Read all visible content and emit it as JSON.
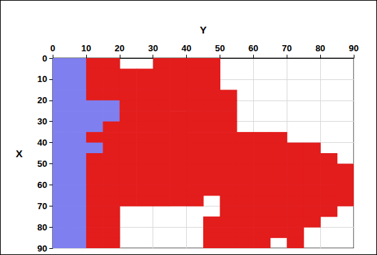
{
  "chart_data": {
    "type": "heatmap",
    "xlabel": "Y",
    "ylabel": "X",
    "xlim": [
      0,
      90
    ],
    "xticks": [
      0,
      10,
      20,
      30,
      40,
      50,
      60,
      70,
      80,
      90
    ],
    "ylim": [
      0,
      90
    ],
    "yticks": [
      0,
      10,
      20,
      30,
      40,
      50,
      60,
      70,
      80,
      90
    ],
    "grid": true,
    "colors": [
      "#7f7ff0",
      "#e31c1c"
    ],
    "values": [
      [
        1,
        1,
        2,
        2,
        0,
        0,
        2,
        2,
        2,
        2,
        0,
        0,
        0,
        0,
        0,
        0,
        0,
        0
      ],
      [
        1,
        1,
        2,
        2,
        2,
        2,
        2,
        2,
        2,
        2,
        0,
        0,
        0,
        0,
        0,
        0,
        0,
        0
      ],
      [
        1,
        1,
        2,
        2,
        2,
        2,
        2,
        2,
        2,
        2,
        0,
        0,
        0,
        0,
        0,
        0,
        0,
        0
      ],
      [
        1,
        1,
        2,
        2,
        2,
        2,
        2,
        2,
        2,
        2,
        2,
        0,
        0,
        0,
        0,
        0,
        0,
        0
      ],
      [
        1,
        1,
        1,
        1,
        2,
        2,
        2,
        2,
        2,
        2,
        2,
        0,
        0,
        0,
        0,
        0,
        0,
        0
      ],
      [
        1,
        1,
        1,
        1,
        2,
        2,
        2,
        2,
        2,
        2,
        2,
        0,
        0,
        0,
        0,
        0,
        0,
        0
      ],
      [
        1,
        1,
        1,
        2,
        2,
        2,
        2,
        2,
        2,
        2,
        2,
        0,
        0,
        0,
        0,
        0,
        0,
        0
      ],
      [
        1,
        1,
        2,
        2,
        2,
        2,
        2,
        2,
        2,
        2,
        2,
        2,
        2,
        2,
        0,
        0,
        0,
        0
      ],
      [
        1,
        1,
        1,
        2,
        2,
        2,
        2,
        2,
        2,
        2,
        2,
        2,
        2,
        2,
        2,
        2,
        0,
        0
      ],
      [
        1,
        1,
        2,
        2,
        2,
        2,
        2,
        2,
        2,
        2,
        2,
        2,
        2,
        2,
        2,
        2,
        2,
        0
      ],
      [
        1,
        1,
        2,
        2,
        2,
        2,
        2,
        2,
        2,
        2,
        2,
        2,
        2,
        2,
        2,
        2,
        2,
        2
      ],
      [
        1,
        1,
        2,
        2,
        2,
        2,
        2,
        2,
        2,
        2,
        2,
        2,
        2,
        2,
        2,
        2,
        2,
        2
      ],
      [
        1,
        1,
        2,
        2,
        2,
        2,
        2,
        2,
        2,
        2,
        2,
        2,
        2,
        2,
        2,
        2,
        2,
        2
      ],
      [
        1,
        1,
        2,
        2,
        2,
        2,
        2,
        2,
        2,
        0,
        2,
        2,
        2,
        2,
        2,
        2,
        2,
        2
      ],
      [
        1,
        1,
        2,
        2,
        0,
        0,
        0,
        0,
        0,
        0,
        2,
        2,
        2,
        2,
        2,
        2,
        2,
        0
      ],
      [
        1,
        1,
        2,
        2,
        0,
        0,
        0,
        0,
        0,
        2,
        2,
        2,
        2,
        2,
        2,
        2,
        0,
        0
      ],
      [
        1,
        1,
        2,
        2,
        0,
        0,
        0,
        0,
        0,
        2,
        2,
        2,
        2,
        2,
        2,
        0,
        0,
        0
      ],
      [
        1,
        1,
        2,
        2,
        0,
        0,
        0,
        0,
        0,
        2,
        2,
        2,
        2,
        0,
        2,
        0,
        0,
        0
      ]
    ]
  }
}
